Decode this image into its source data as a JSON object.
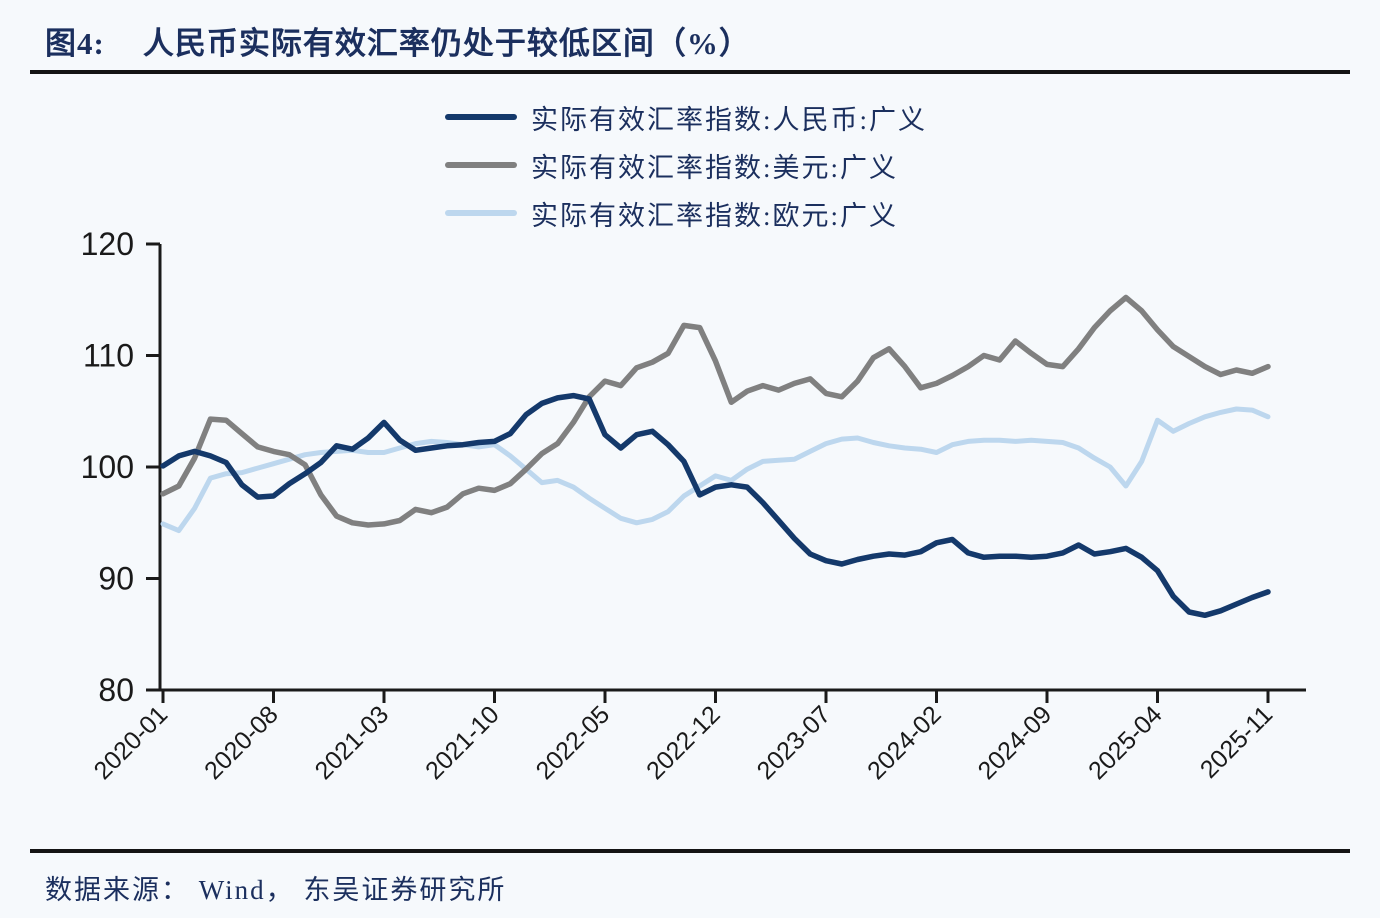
{
  "header": {
    "figure_label": "图4:",
    "title": "人民币实际有效汇率仍处于较低区间（%）"
  },
  "footer": {
    "source_text": "数据来源： Wind， 东吴证券研究所"
  },
  "colors": {
    "cny_line": "#14396B",
    "usd_line": "#808080",
    "eur_line": "#BDD7EE",
    "text_navy": "#1B2F5E",
    "axis": "#1A1A1A",
    "rule": "#141414",
    "background": "#F6F9FC"
  },
  "chart_data": {
    "type": "line",
    "title": "人民币实际有效汇率仍处于较低区间（%）",
    "xlabel": "",
    "ylabel": "",
    "ylim": [
      80,
      120
    ],
    "y_ticks": [
      80,
      90,
      100,
      110,
      120
    ],
    "grid": false,
    "legend_position": "top-center",
    "x_frequency": "monthly",
    "x_start": "2020-01",
    "x_end": "2025-11",
    "x_tick_labels": [
      "2020-01",
      "2020-08",
      "2021-03",
      "2021-10",
      "2022-05",
      "2022-12",
      "2023-07",
      "2024-02",
      "2024-09",
      "2025-04",
      "2025-11"
    ],
    "x_tick_month_indices": [
      0,
      7,
      14,
      21,
      28,
      35,
      42,
      49,
      56,
      63,
      70
    ],
    "series": [
      {
        "key": "cny",
        "name": "实际有效汇率指数:人民币:广义",
        "color": "#14396B",
        "values": [
          100.1,
          101.0,
          101.4,
          101.0,
          100.4,
          98.4,
          97.3,
          97.4,
          98.5,
          99.4,
          100.4,
          101.9,
          101.6,
          102.6,
          104.0,
          102.4,
          101.5,
          101.7,
          101.9,
          102.0,
          102.2,
          102.3,
          103.0,
          104.7,
          105.7,
          106.2,
          106.4,
          106.1,
          102.9,
          101.7,
          102.9,
          103.2,
          102.0,
          100.5,
          97.5,
          98.2,
          98.4,
          98.2,
          96.8,
          95.2,
          93.6,
          92.2,
          91.6,
          91.3,
          91.7,
          92.0,
          92.2,
          92.1,
          92.4,
          93.2,
          93.5,
          92.3,
          91.9,
          92.0,
          92.0,
          91.9,
          92.0,
          92.3,
          93.0,
          92.2,
          92.4,
          92.7,
          91.9,
          90.7,
          88.4,
          87.0,
          86.7,
          87.1,
          87.7,
          88.3,
          88.8
        ]
      },
      {
        "key": "usd",
        "name": "实际有效汇率指数:美元:广义",
        "color": "#808080",
        "values": [
          97.6,
          98.3,
          100.8,
          104.3,
          104.2,
          103.0,
          101.8,
          101.4,
          101.1,
          100.2,
          97.5,
          95.6,
          95.0,
          94.8,
          94.9,
          95.2,
          96.2,
          95.9,
          96.4,
          97.6,
          98.1,
          97.9,
          98.5,
          99.8,
          101.2,
          102.1,
          104.0,
          106.3,
          107.7,
          107.3,
          108.9,
          109.4,
          110.2,
          112.7,
          112.5,
          109.5,
          105.8,
          106.8,
          107.3,
          106.9,
          107.5,
          107.9,
          106.6,
          106.3,
          107.7,
          109.8,
          110.6,
          109.0,
          107.1,
          107.5,
          108.2,
          109.0,
          110.0,
          109.6,
          111.3,
          110.2,
          109.2,
          109.0,
          110.6,
          112.5,
          114.0,
          115.2,
          114.0,
          112.3,
          110.8,
          109.9,
          109.0,
          108.3,
          108.7,
          108.4,
          109.0
        ]
      },
      {
        "key": "eur",
        "name": "实际有效汇率指数:欧元:广义",
        "color": "#BDD7EE",
        "values": [
          94.9,
          94.3,
          96.3,
          99.0,
          99.4,
          99.5,
          99.9,
          100.3,
          100.7,
          101.1,
          101.3,
          101.4,
          101.5,
          101.3,
          101.3,
          101.7,
          102.1,
          102.3,
          102.2,
          102.0,
          101.8,
          102.0,
          101.0,
          99.8,
          98.6,
          98.8,
          98.2,
          97.2,
          96.3,
          95.4,
          95.0,
          95.3,
          96.0,
          97.4,
          98.3,
          99.2,
          98.8,
          99.8,
          100.5,
          100.6,
          100.7,
          101.4,
          102.1,
          102.5,
          102.6,
          102.2,
          101.9,
          101.7,
          101.6,
          101.3,
          102.0,
          102.3,
          102.4,
          102.4,
          102.3,
          102.4,
          102.3,
          102.2,
          101.7,
          100.8,
          100.0,
          98.3,
          100.5,
          104.2,
          103.2,
          103.9,
          104.5,
          104.9,
          105.2,
          105.1,
          104.5
        ]
      }
    ]
  }
}
